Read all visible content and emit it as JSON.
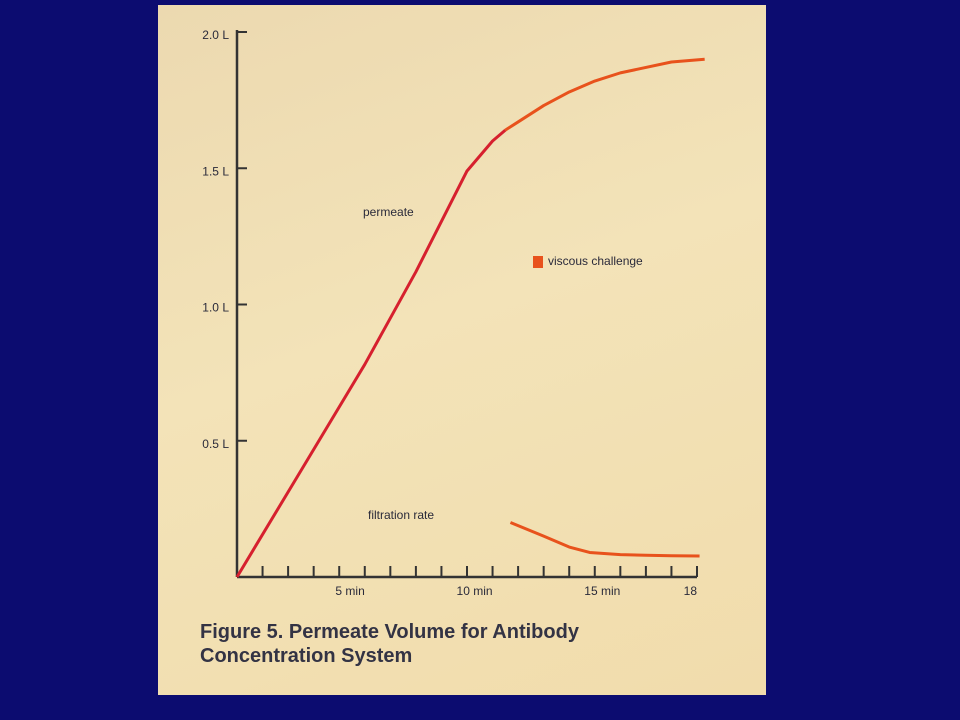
{
  "chart_data": {
    "type": "line",
    "title": "Figure 5. Permeate Volume for Antibody Concentration System",
    "xlim": [
      0,
      18
    ],
    "ylim": [
      0,
      2.0
    ],
    "xticks": [
      {
        "value": 5,
        "label": "5 min"
      },
      {
        "value": 10,
        "label": "10 min"
      },
      {
        "value": 15,
        "label": "15 min"
      },
      18
    ],
    "xminor_ticks": [
      1,
      2,
      3,
      4,
      5,
      6,
      7,
      8,
      9,
      10,
      11,
      12,
      13,
      14,
      15,
      16,
      17,
      18
    ],
    "yticks": [
      {
        "value": 0.5,
        "label": "0.5 L"
      },
      {
        "value": 1.0,
        "label": "1.0 L"
      },
      {
        "value": 1.5,
        "label": "1.5 L"
      },
      {
        "value": 2.0,
        "label": "2.0 L"
      }
    ],
    "viscous_challenge": {
      "label": "viscous challenge",
      "color": "#e8521c",
      "start": 10.5
    },
    "series": [
      {
        "name": "permeate",
        "color": "#d6202e",
        "x": [
          0,
          2.5,
          5,
          7,
          9,
          10,
          10.5,
          11,
          12,
          13,
          14,
          15,
          16,
          17,
          18.3
        ],
        "values": [
          0,
          0.39,
          0.78,
          1.12,
          1.49,
          1.6,
          1.64,
          1.67,
          1.73,
          1.78,
          1.82,
          1.85,
          1.87,
          1.89,
          1.9
        ]
      },
      {
        "name": "filtration rate",
        "color": "#e8521c",
        "x": [
          10.7,
          12,
          13,
          13.8,
          15,
          16,
          17,
          18.1
        ],
        "values": [
          0.2,
          0.15,
          0.11,
          0.09,
          0.082,
          0.08,
          0.078,
          0.077
        ]
      }
    ]
  }
}
